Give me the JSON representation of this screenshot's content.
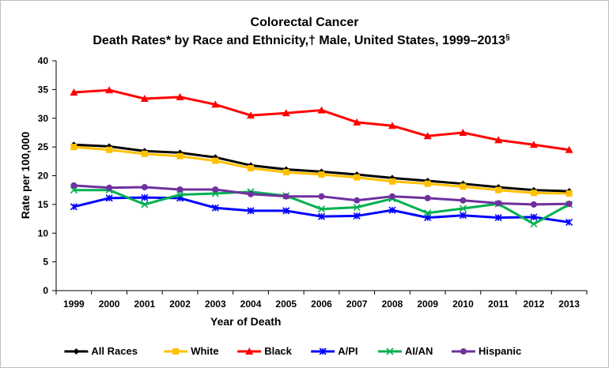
{
  "chart_data": {
    "type": "line",
    "title_line1": "Colorectal Cancer",
    "title_line2": "Death Rates* by Race and Ethnicity,† Male, United States, 1999–2013",
    "title_sup": "§",
    "xlabel": "Year of Death",
    "ylabel": "Rate per 100,000",
    "ylim": [
      0,
      40
    ],
    "yticks": [
      "0",
      "5",
      "10",
      "15",
      "20",
      "25",
      "30",
      "35",
      "40"
    ],
    "categories": [
      "1999",
      "2000",
      "2001",
      "2002",
      "2003",
      "2004",
      "2005",
      "2006",
      "2007",
      "2008",
      "2009",
      "2010",
      "2011",
      "2012",
      "2013"
    ],
    "legend_position": "bottom",
    "series": [
      {
        "name": "All Races",
        "color": "#000000",
        "marker": "diamond",
        "values": [
          25.4,
          25.1,
          24.3,
          24.0,
          23.2,
          21.8,
          21.1,
          20.7,
          20.2,
          19.6,
          19.1,
          18.6,
          18.0,
          17.5,
          17.3
        ]
      },
      {
        "name": "White",
        "color": "#FFC000",
        "marker": "square",
        "values": [
          25.0,
          24.5,
          23.8,
          23.4,
          22.6,
          21.3,
          20.6,
          20.2,
          19.7,
          19.0,
          18.6,
          18.1,
          17.5,
          17.0,
          16.9
        ]
      },
      {
        "name": "Black",
        "color": "#FF0000",
        "marker": "triangle",
        "values": [
          34.5,
          34.9,
          33.4,
          33.7,
          32.4,
          30.5,
          30.9,
          31.4,
          29.3,
          28.7,
          26.9,
          27.5,
          26.2,
          25.4,
          24.5
        ]
      },
      {
        "name": "A/PI",
        "color": "#0000FF",
        "marker": "star",
        "values": [
          14.6,
          16.1,
          16.2,
          16.1,
          14.4,
          13.9,
          13.9,
          12.9,
          13.0,
          14.0,
          12.7,
          13.1,
          12.7,
          12.8,
          11.9
        ]
      },
      {
        "name": "AI/AN",
        "color": "#00B050",
        "marker": "x",
        "values": [
          17.5,
          17.5,
          15.0,
          16.7,
          16.9,
          17.2,
          16.5,
          14.2,
          14.5,
          16.0,
          13.5,
          14.3,
          15.1,
          11.6,
          15.0
        ]
      },
      {
        "name": "Hispanic",
        "color": "#7030A0",
        "marker": "circle",
        "values": [
          18.3,
          17.9,
          18.0,
          17.6,
          17.6,
          16.8,
          16.4,
          16.4,
          15.7,
          16.4,
          16.1,
          15.7,
          15.2,
          15.0,
          15.1
        ]
      }
    ]
  }
}
